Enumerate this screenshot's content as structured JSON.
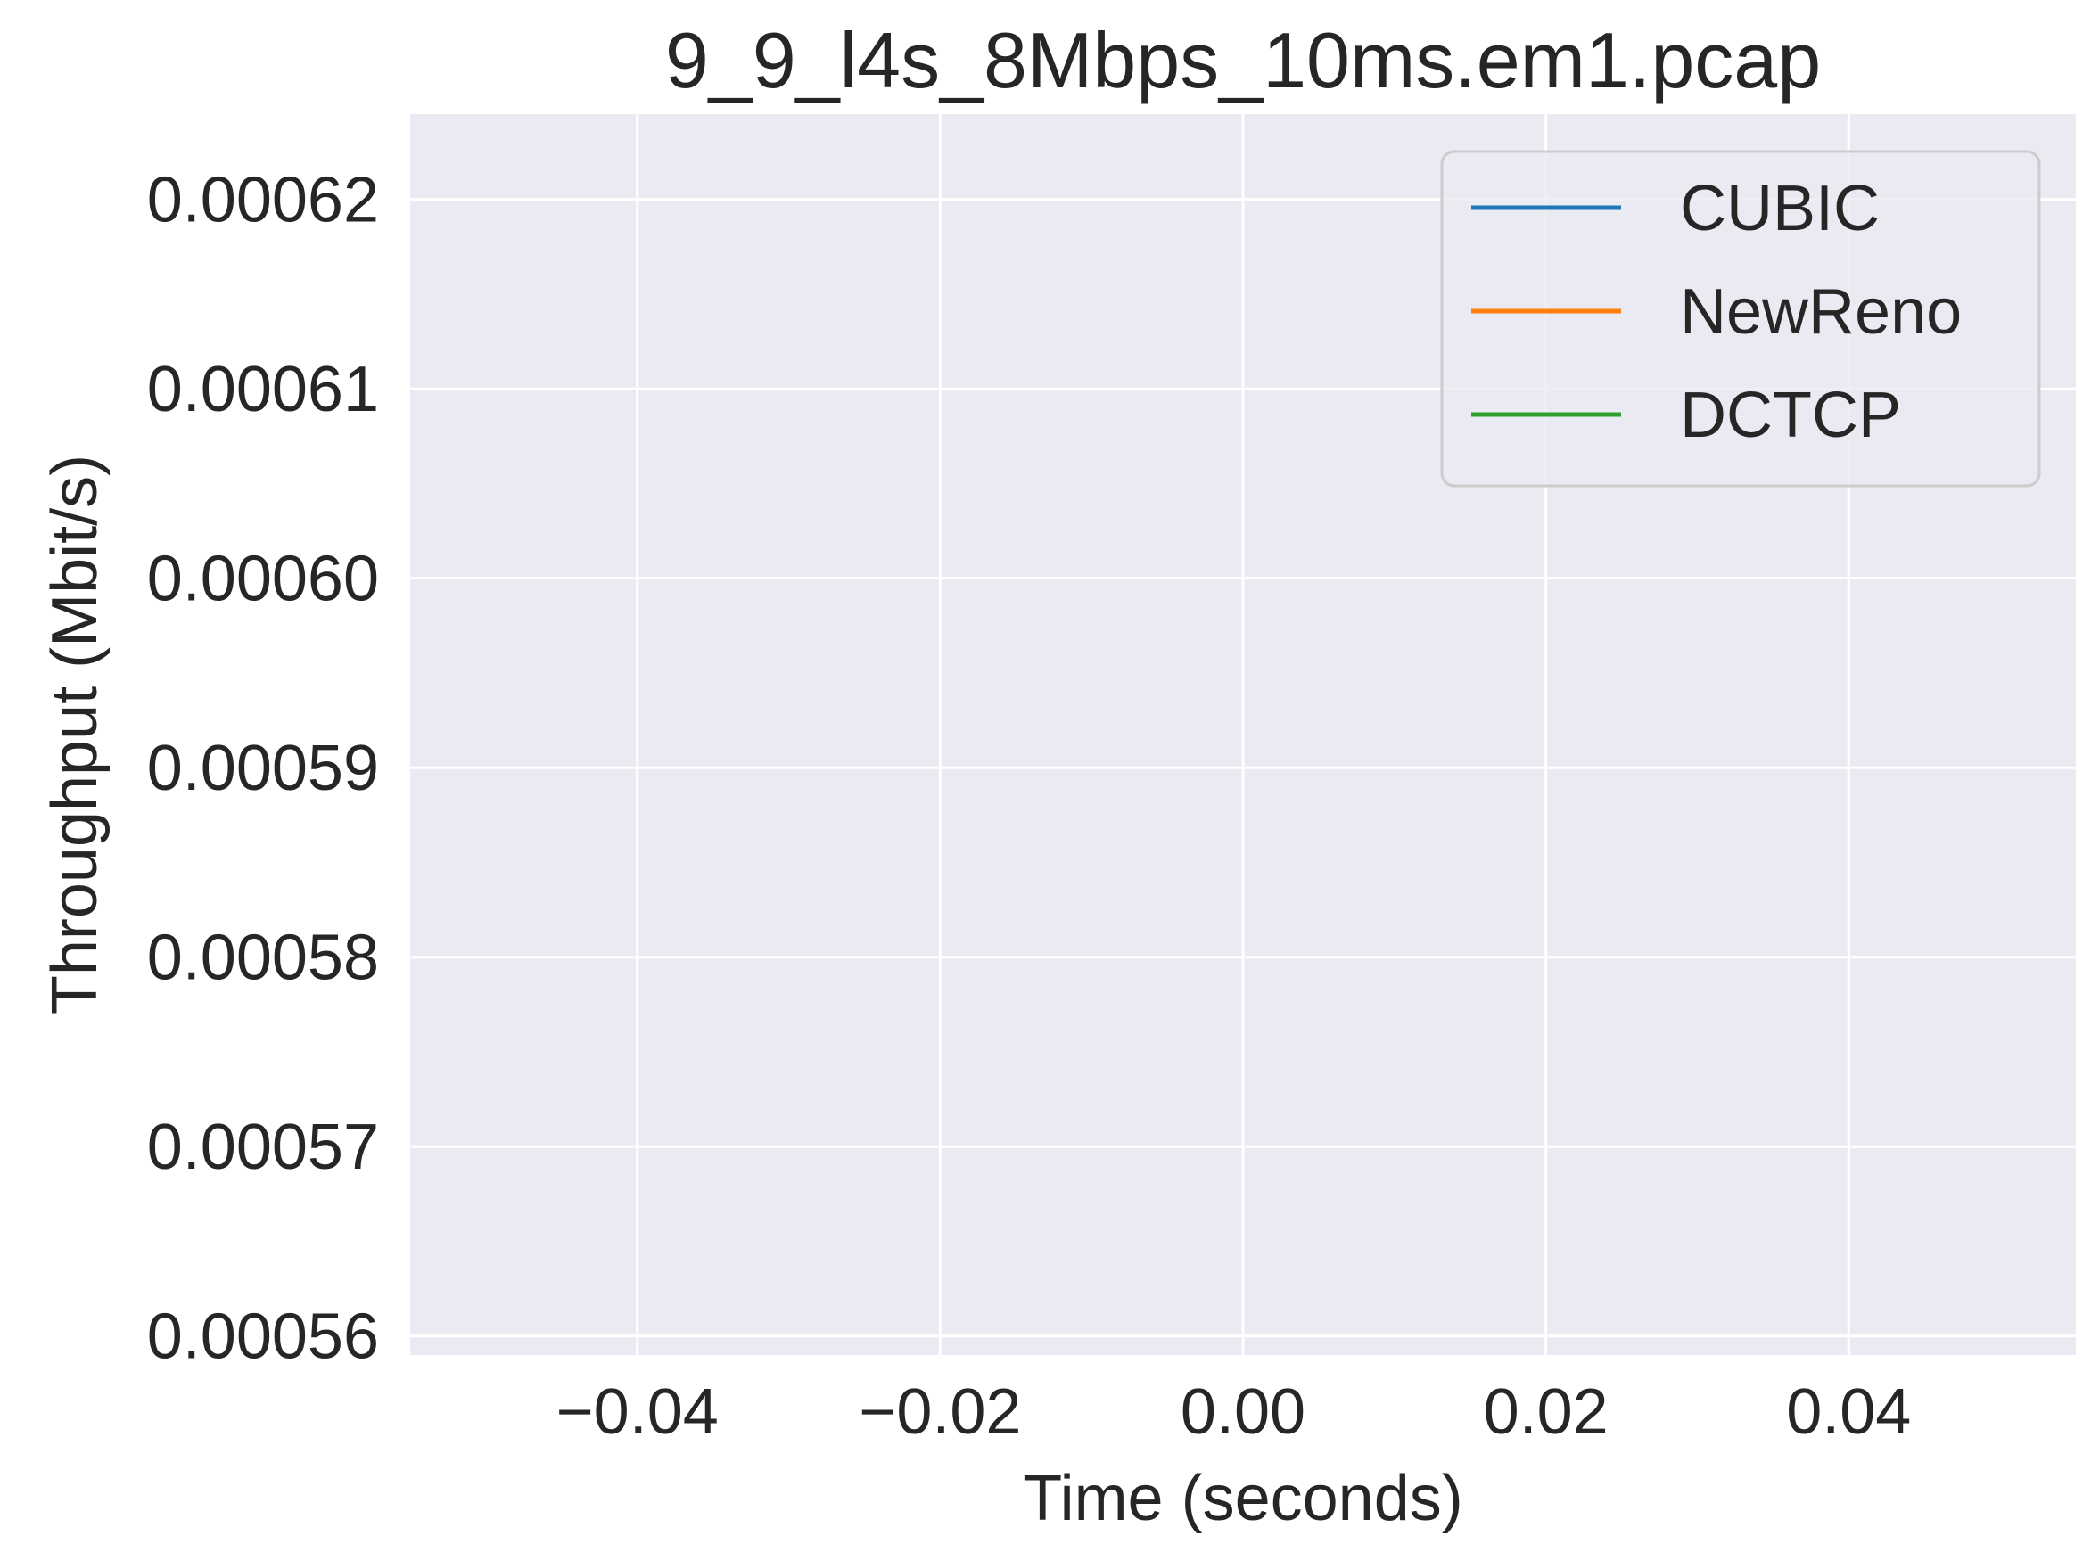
{
  "chart_data": {
    "type": "line",
    "title": "9_9_l4s_8Mbps_10ms.em1.pcap",
    "xlabel": "Time (seconds)",
    "ylabel": "Throughput (Mbit/s)",
    "xlim": [
      -0.055,
      0.055
    ],
    "ylim": [
      0.000559,
      0.0006245
    ],
    "xticks": [
      -0.04,
      -0.02,
      0.0,
      0.02,
      0.04
    ],
    "xtick_labels": [
      "−0.04",
      "−0.02",
      "0.00",
      "0.02",
      "0.04"
    ],
    "yticks": [
      0.00056,
      0.00057,
      0.00058,
      0.00059,
      0.0006,
      0.00061,
      0.00062
    ],
    "ytick_labels": [
      "0.00056",
      "0.00057",
      "0.00058",
      "0.00059",
      "0.00060",
      "0.00061",
      "0.00062"
    ],
    "grid": true,
    "legend_position": "top-right",
    "series": [
      {
        "name": "CUBIC",
        "color": "#1f77b4",
        "x": [],
        "y": []
      },
      {
        "name": "NewReno",
        "color": "#ff7f0e",
        "x": [],
        "y": []
      },
      {
        "name": "DCTCP",
        "color": "#2ca02c",
        "x": [],
        "y": []
      }
    ]
  }
}
